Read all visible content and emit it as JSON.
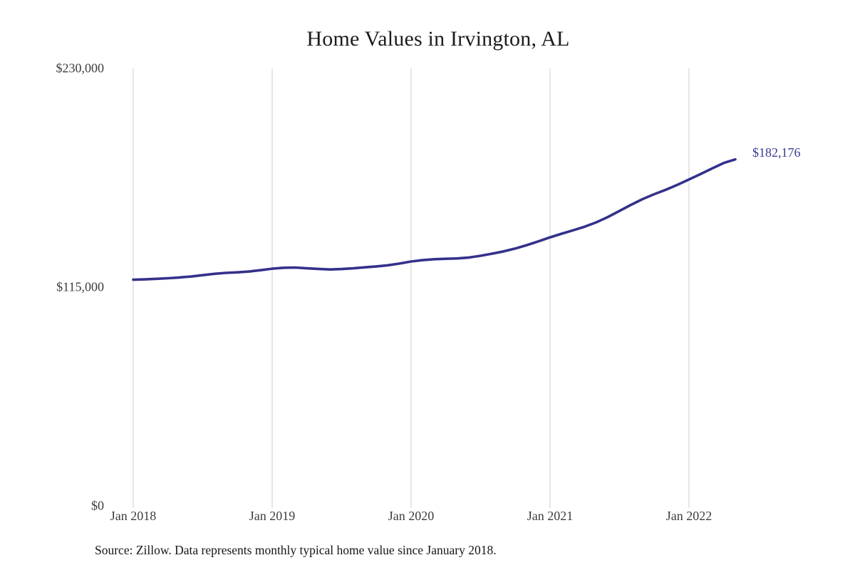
{
  "chart_data": {
    "type": "line",
    "title": "Home Values in Irvington, AL",
    "source_note": "Source: Zillow. Data represents monthly typical home value since January 2018.",
    "end_label": "$182,176",
    "end_value": 182176,
    "line_color": "#34318b",
    "end_label_color": "#3a3a95",
    "grid_color": "#cccccc",
    "grid": "vertical-only",
    "legend": "none",
    "ylim": [
      0,
      230000
    ],
    "y_ticks": [
      {
        "value": 230000,
        "label": "$230,000"
      },
      {
        "value": 115000,
        "label": "$115,000"
      },
      {
        "value": 0,
        "label": "$0"
      }
    ],
    "x_ticks": [
      {
        "month_index": 0,
        "label": "Jan 2018"
      },
      {
        "month_index": 12,
        "label": "Jan 2019"
      },
      {
        "month_index": 24,
        "label": "Jan 2020"
      },
      {
        "month_index": 36,
        "label": "Jan 2021"
      },
      {
        "month_index": 48,
        "label": "Jan 2022"
      }
    ],
    "x": [
      "2018-01",
      "2018-02",
      "2018-03",
      "2018-04",
      "2018-05",
      "2018-06",
      "2018-07",
      "2018-08",
      "2018-09",
      "2018-10",
      "2018-11",
      "2018-12",
      "2019-01",
      "2019-02",
      "2019-03",
      "2019-04",
      "2019-05",
      "2019-06",
      "2019-07",
      "2019-08",
      "2019-09",
      "2019-10",
      "2019-11",
      "2019-12",
      "2020-01",
      "2020-02",
      "2020-03",
      "2020-04",
      "2020-05",
      "2020-06",
      "2020-07",
      "2020-08",
      "2020-09",
      "2020-10",
      "2020-11",
      "2020-12",
      "2021-01",
      "2021-02",
      "2021-03",
      "2021-04",
      "2021-05",
      "2021-06",
      "2021-07",
      "2021-08",
      "2021-09",
      "2021-10",
      "2021-11",
      "2021-12",
      "2022-01",
      "2022-02",
      "2022-03",
      "2022-04",
      "2022-05"
    ],
    "values": [
      118900,
      119100,
      119400,
      119700,
      120100,
      120600,
      121300,
      122000,
      122500,
      122800,
      123200,
      123900,
      124700,
      125200,
      125300,
      124900,
      124600,
      124300,
      124500,
      124900,
      125400,
      125900,
      126500,
      127400,
      128500,
      129200,
      129700,
      129900,
      130100,
      130600,
      131500,
      132600,
      133800,
      135300,
      137100,
      139100,
      141200,
      143100,
      144900,
      146800,
      149100,
      151900,
      155100,
      158300,
      161300,
      163900,
      166200,
      168800,
      171600,
      174500,
      177400,
      180300,
      182176
    ],
    "series_name": "Typical home value"
  },
  "layout_meta": {
    "x_axis_unit": "month",
    "y_axis_unit": "USD"
  }
}
